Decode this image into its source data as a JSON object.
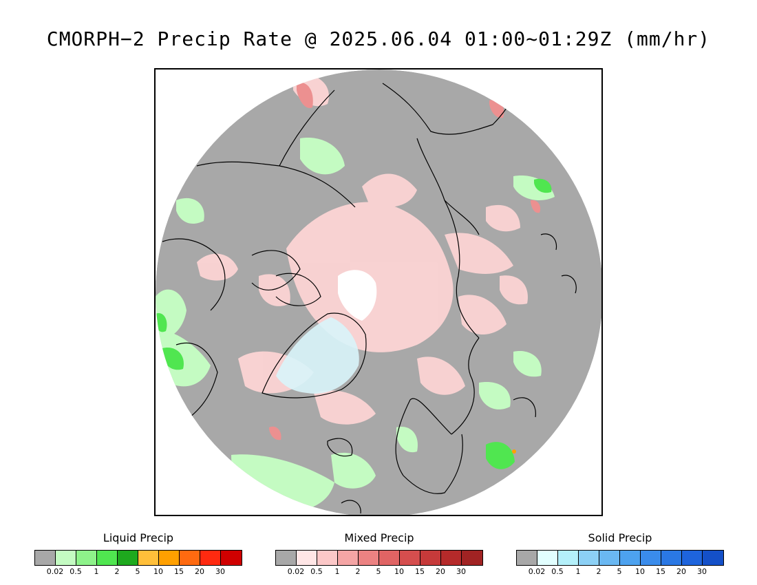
{
  "title": "CMORPH−2 Precip Rate @ 2025.06.04 01:00~01:29Z (mm/hr)",
  "map": {
    "projection": "north-polar-stereographic",
    "colors": {
      "no_precip": "#a8a8a8",
      "coastline": "#000000",
      "greenland_snow": "#d8f4fa"
    }
  },
  "legends": [
    {
      "title": "Liquid Precip",
      "colors": [
        "#a8a8a8",
        "#c4fbc2",
        "#8ef28a",
        "#50e650",
        "#1ea91e",
        "#ffbf3a",
        "#ffa000",
        "#ff6a10",
        "#ff2a10",
        "#d00000"
      ],
      "ticks": [
        "0.02",
        "0.5",
        "1",
        "2",
        "5",
        "10",
        "15",
        "20",
        "30"
      ]
    },
    {
      "title": "Mixed Precip",
      "colors": [
        "#a8a8a8",
        "#ffe6e6",
        "#fcc8c8",
        "#f5a5a5",
        "#ec8282",
        "#e06464",
        "#d54e4e",
        "#c63a3a",
        "#b52a2a",
        "#a12323"
      ],
      "ticks": [
        "0.02",
        "0.5",
        "1",
        "2",
        "5",
        "10",
        "15",
        "20",
        "30"
      ]
    },
    {
      "title": "Solid Precip",
      "colors": [
        "#a8a8a8",
        "#e2ffff",
        "#b4f0fa",
        "#8cd0f5",
        "#6ab8f2",
        "#4da2ef",
        "#3a8ceb",
        "#2a78e4",
        "#1e64dc",
        "#1450c8"
      ],
      "ticks": [
        "0.02",
        "0.5",
        "1",
        "2",
        "5",
        "10",
        "15",
        "20",
        "30"
      ]
    }
  ]
}
